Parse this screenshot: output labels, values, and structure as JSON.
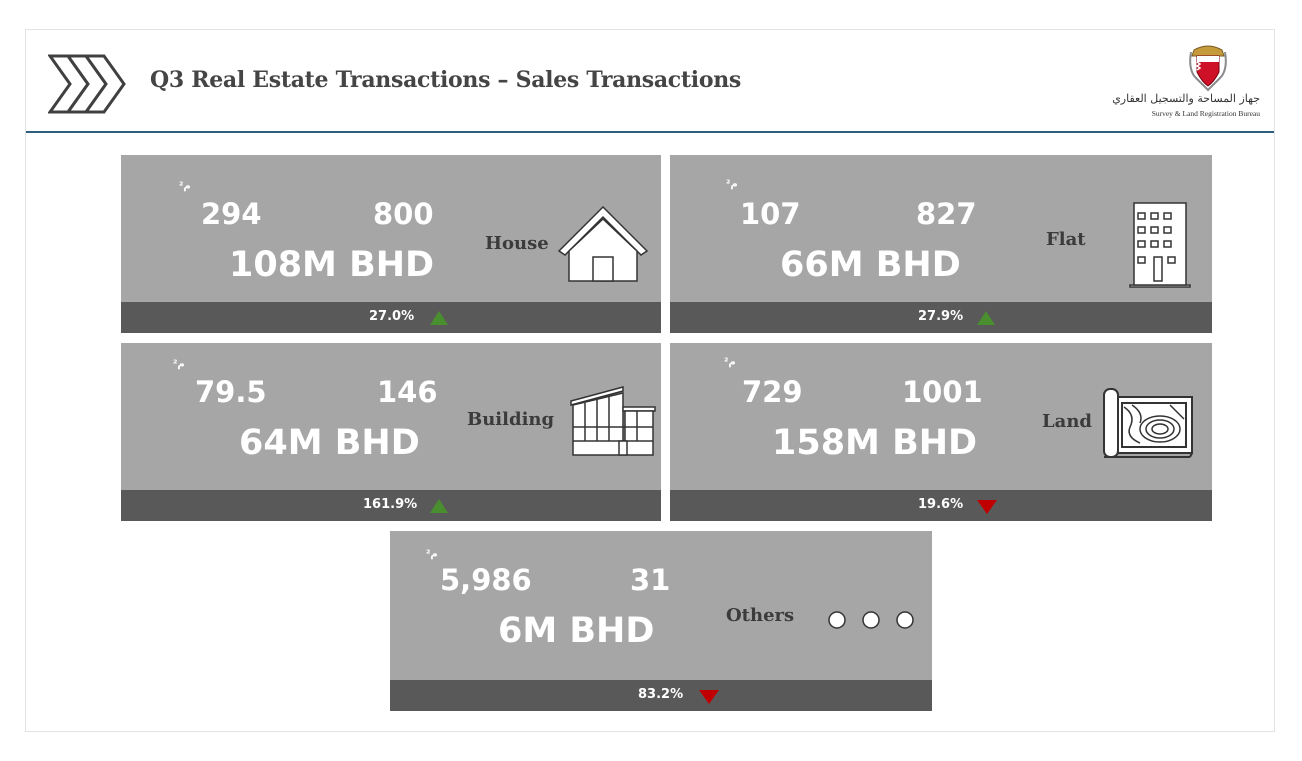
{
  "header": {
    "title": "Q3 Real Estate Transactions – Sales Transactions",
    "logo_arabic": "جهاز المساحة والتسجيل العقاري",
    "logo_english": "Survey & Land Registration Bureau",
    "title_color": "#454545",
    "rule_color": "#2f5f7f"
  },
  "unit_label": "م²",
  "colors": {
    "card_bg": "#a6a6a6",
    "footer_bg": "#595959",
    "up": "#4a8f2f",
    "down": "#c00000"
  },
  "cards": {
    "house": {
      "area": "294",
      "count": "800",
      "value": "108M BHD",
      "label": "House",
      "change": "27.0%",
      "trend": "up",
      "icon": "house-icon"
    },
    "flat": {
      "area": "107",
      "count": "827",
      "value": "66M BHD",
      "label": "Flat",
      "change": "27.9%",
      "trend": "up",
      "icon": "apartment-building-icon"
    },
    "building": {
      "area": "79.5",
      "count": "146",
      "value": "64M BHD",
      "label": "Building",
      "change": "161.9%",
      "trend": "up",
      "icon": "building-icon"
    },
    "land": {
      "area": "729",
      "count": "1001",
      "value": "158M BHD",
      "label": "Land",
      "change": "19.6%",
      "trend": "down",
      "icon": "land-map-icon"
    },
    "others": {
      "area": "5,986",
      "count": "31",
      "value": "6M BHD",
      "label": "Others",
      "change": "83.2%",
      "trend": "down",
      "icon": "ellipsis-circles-icon"
    }
  }
}
